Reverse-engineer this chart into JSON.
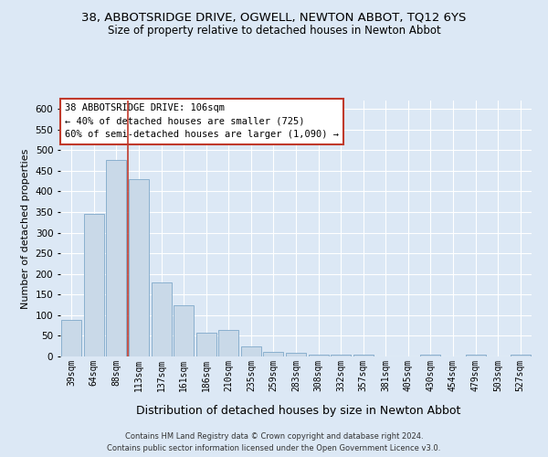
{
  "title": "38, ABBOTSRIDGE DRIVE, OGWELL, NEWTON ABBOT, TQ12 6YS",
  "subtitle": "Size of property relative to detached houses in Newton Abbot",
  "xlabel": "Distribution of detached houses by size in Newton Abbot",
  "ylabel": "Number of detached properties",
  "footer": "Contains HM Land Registry data © Crown copyright and database right 2024.\nContains public sector information licensed under the Open Government Licence v3.0.",
  "categories": [
    "39sqm",
    "64sqm",
    "88sqm",
    "113sqm",
    "137sqm",
    "161sqm",
    "186sqm",
    "210sqm",
    "235sqm",
    "259sqm",
    "283sqm",
    "308sqm",
    "332sqm",
    "357sqm",
    "381sqm",
    "405sqm",
    "430sqm",
    "454sqm",
    "479sqm",
    "503sqm",
    "527sqm"
  ],
  "values": [
    88,
    345,
    477,
    430,
    180,
    125,
    57,
    65,
    25,
    12,
    8,
    5,
    5,
    5,
    0,
    0,
    5,
    0,
    5,
    0,
    5
  ],
  "bar_color": "#c9d9e8",
  "bar_edge_color": "#7fa8c9",
  "vline_x": 2.5,
  "vline_color": "#c0392b",
  "annotation_text": "38 ABBOTSRIDGE DRIVE: 106sqm\n← 40% of detached houses are smaller (725)\n60% of semi-detached houses are larger (1,090) →",
  "annotation_box_color": "#ffffff",
  "annotation_box_edge": "#c0392b",
  "ylim": [
    0,
    620
  ],
  "yticks": [
    0,
    50,
    100,
    150,
    200,
    250,
    300,
    350,
    400,
    450,
    500,
    550,
    600
  ],
  "background_color": "#dce8f5",
  "grid_color": "#ffffff",
  "title_fontsize": 9.5,
  "subtitle_fontsize": 8.5,
  "xlabel_fontsize": 9,
  "ylabel_fontsize": 8
}
